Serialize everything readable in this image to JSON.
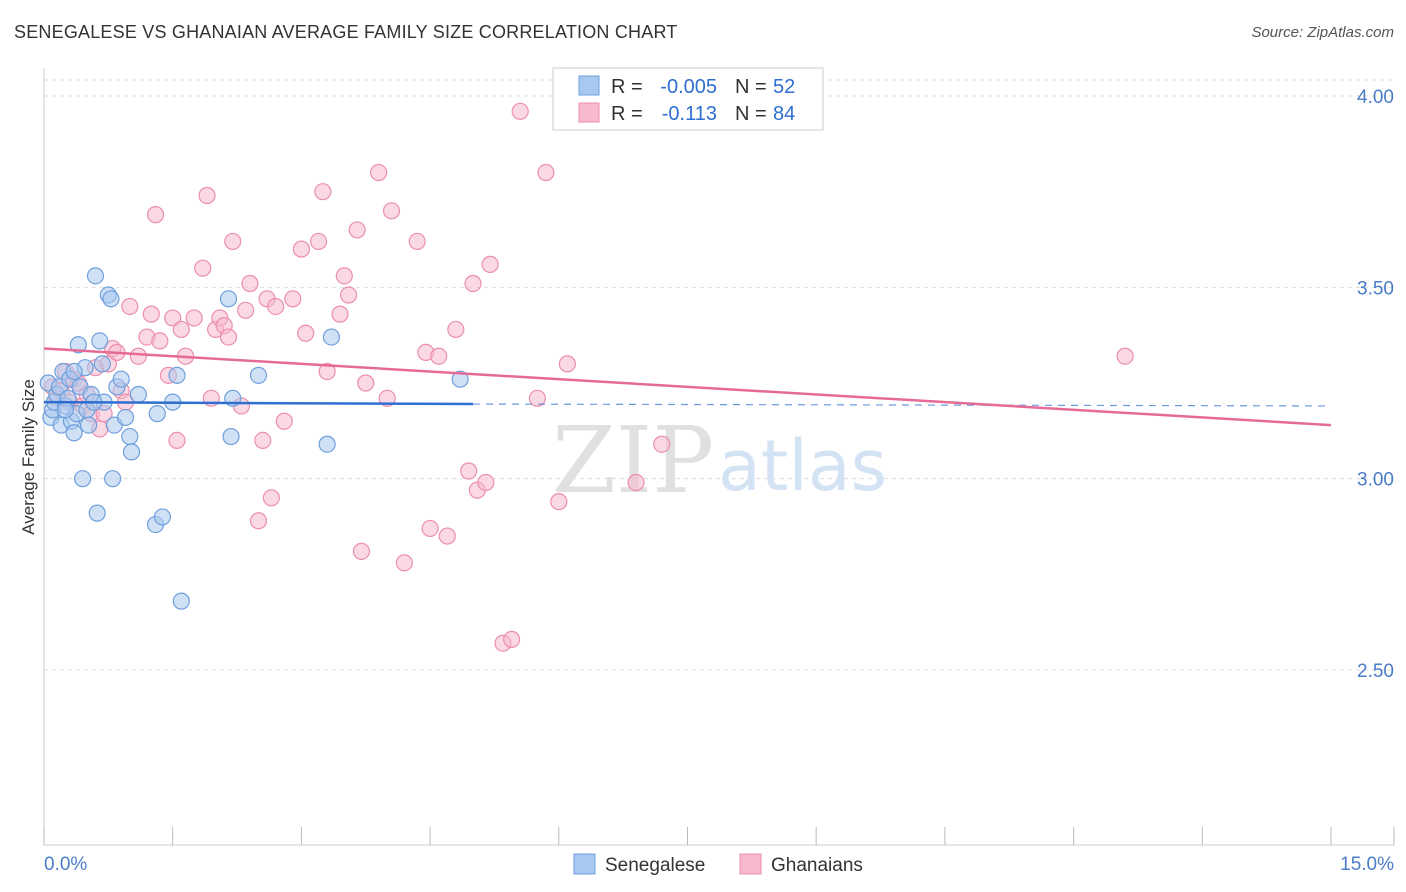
{
  "title": "SENEGALESE VS GHANAIAN AVERAGE FAMILY SIZE CORRELATION CHART",
  "source": "Source: ZipAtlas.com",
  "watermark": {
    "zip": "ZIP",
    "atlas": "atlas"
  },
  "colors": {
    "blue_fill": "#a9c8ef",
    "blue_stroke": "#6f9fdc",
    "blue_line": "#2e6fd0",
    "pink_fill": "#f6b9cd",
    "pink_stroke": "#ec8eac",
    "pink_line": "#e56b96",
    "value_text": "#2f6ed1",
    "grid": "#dddddd"
  },
  "legend": {
    "entries": [
      {
        "r_label": "R =",
        "r_value": "-0.005",
        "n_label": "N =",
        "n_value": "52"
      },
      {
        "r_label": "R =",
        "r_value": "-0.113",
        "n_label": "N =",
        "n_value": "84"
      }
    ]
  },
  "chart_data": {
    "type": "scatter",
    "title": "SENEGALESE VS GHANAIAN AVERAGE FAMILY SIZE CORRELATION CHART",
    "xlabel": "",
    "ylabel": "Average Family Size",
    "xlim": [
      0,
      15
    ],
    "ylim": [
      2.0,
      4.15
    ],
    "x_tick_labels": [
      "0.0%",
      "15.0%"
    ],
    "y_ticks": [
      2.5,
      3.0,
      3.5,
      4.0
    ],
    "y_tick_labels": [
      "2.50",
      "3.00",
      "3.50",
      "4.00"
    ],
    "series": [
      {
        "name": "Senegalese",
        "r": -0.005,
        "n": 52,
        "trend": {
          "x0": 0,
          "y0": 3.2,
          "x1": 5.0,
          "y1": 3.195,
          "dashed_to_x": 15,
          "dashed_y1": 3.19
        },
        "points": [
          [
            0.05,
            3.25
          ],
          [
            0.08,
            3.16
          ],
          [
            0.1,
            3.18
          ],
          [
            0.12,
            3.2
          ],
          [
            0.15,
            3.22
          ],
          [
            0.18,
            3.24
          ],
          [
            0.2,
            3.14
          ],
          [
            0.22,
            3.28
          ],
          [
            0.25,
            3.19
          ],
          [
            0.28,
            3.21
          ],
          [
            0.3,
            3.26
          ],
          [
            0.32,
            3.15
          ],
          [
            0.35,
            3.12
          ],
          [
            0.38,
            3.17
          ],
          [
            0.4,
            3.35
          ],
          [
            0.42,
            3.24
          ],
          [
            0.45,
            3.0
          ],
          [
            0.48,
            3.29
          ],
          [
            0.5,
            3.18
          ],
          [
            0.52,
            3.14
          ],
          [
            0.55,
            3.22
          ],
          [
            0.6,
            3.53
          ],
          [
            0.62,
            2.91
          ],
          [
            0.65,
            3.36
          ],
          [
            0.68,
            3.3
          ],
          [
            0.75,
            3.48
          ],
          [
            0.78,
            3.47
          ],
          [
            0.8,
            3.0
          ],
          [
            0.82,
            3.14
          ],
          [
            0.85,
            3.24
          ],
          [
            0.95,
            3.16
          ],
          [
            1.0,
            3.11
          ],
          [
            1.02,
            3.07
          ],
          [
            1.1,
            3.22
          ],
          [
            1.3,
            2.88
          ],
          [
            1.32,
            3.17
          ],
          [
            1.38,
            2.9
          ],
          [
            1.5,
            3.2
          ],
          [
            1.55,
            3.27
          ],
          [
            1.6,
            2.68
          ],
          [
            2.15,
            3.47
          ],
          [
            2.18,
            3.11
          ],
          [
            2.2,
            3.21
          ],
          [
            2.5,
            3.27
          ],
          [
            3.3,
            3.09
          ],
          [
            3.35,
            3.37
          ],
          [
            4.85,
            3.26
          ],
          [
            0.9,
            3.26
          ],
          [
            0.7,
            3.2
          ],
          [
            0.35,
            3.28
          ],
          [
            0.58,
            3.2
          ],
          [
            0.25,
            3.18
          ]
        ]
      },
      {
        "name": "Ghanaians",
        "r": -0.113,
        "n": 84,
        "trend": {
          "x0": 0,
          "y0": 3.34,
          "x1": 15,
          "y1": 3.14
        },
        "points": [
          [
            0.1,
            3.24
          ],
          [
            0.15,
            3.21
          ],
          [
            0.2,
            3.23
          ],
          [
            0.25,
            3.28
          ],
          [
            0.3,
            3.2
          ],
          [
            0.35,
            3.26
          ],
          [
            0.4,
            3.25
          ],
          [
            0.45,
            3.19
          ],
          [
            0.5,
            3.22
          ],
          [
            0.55,
            3.17
          ],
          [
            0.6,
            3.29
          ],
          [
            0.65,
            3.13
          ],
          [
            0.7,
            3.17
          ],
          [
            0.75,
            3.3
          ],
          [
            0.8,
            3.34
          ],
          [
            0.85,
            3.33
          ],
          [
            0.9,
            3.23
          ],
          [
            0.95,
            3.2
          ],
          [
            1.0,
            3.45
          ],
          [
            1.1,
            3.32
          ],
          [
            1.2,
            3.37
          ],
          [
            1.25,
            3.43
          ],
          [
            1.3,
            3.69
          ],
          [
            1.35,
            3.36
          ],
          [
            1.45,
            3.27
          ],
          [
            1.5,
            3.42
          ],
          [
            1.55,
            3.1
          ],
          [
            1.6,
            3.39
          ],
          [
            1.65,
            3.32
          ],
          [
            1.75,
            3.42
          ],
          [
            1.85,
            3.55
          ],
          [
            1.9,
            3.74
          ],
          [
            1.95,
            3.21
          ],
          [
            2.0,
            3.39
          ],
          [
            2.05,
            3.42
          ],
          [
            2.1,
            3.4
          ],
          [
            2.15,
            3.37
          ],
          [
            2.2,
            3.62
          ],
          [
            2.3,
            3.19
          ],
          [
            2.35,
            3.44
          ],
          [
            2.4,
            3.51
          ],
          [
            2.5,
            2.89
          ],
          [
            2.55,
            3.1
          ],
          [
            2.6,
            3.47
          ],
          [
            2.65,
            2.95
          ],
          [
            2.7,
            3.45
          ],
          [
            2.8,
            3.15
          ],
          [
            2.9,
            3.47
          ],
          [
            3.0,
            3.6
          ],
          [
            3.05,
            3.38
          ],
          [
            3.2,
            3.62
          ],
          [
            3.25,
            3.75
          ],
          [
            3.3,
            3.28
          ],
          [
            3.45,
            3.43
          ],
          [
            3.5,
            3.53
          ],
          [
            3.55,
            3.48
          ],
          [
            3.65,
            3.65
          ],
          [
            3.7,
            2.81
          ],
          [
            3.75,
            3.25
          ],
          [
            3.9,
            3.8
          ],
          [
            4.0,
            3.21
          ],
          [
            4.05,
            3.7
          ],
          [
            4.2,
            2.78
          ],
          [
            4.35,
            3.62
          ],
          [
            4.45,
            3.33
          ],
          [
            4.5,
            2.87
          ],
          [
            4.6,
            3.32
          ],
          [
            4.7,
            2.85
          ],
          [
            4.8,
            3.39
          ],
          [
            4.95,
            3.02
          ],
          [
            5.0,
            3.51
          ],
          [
            5.05,
            2.97
          ],
          [
            5.15,
            2.99
          ],
          [
            5.2,
            3.56
          ],
          [
            5.35,
            2.57
          ],
          [
            5.45,
            2.58
          ],
          [
            5.55,
            3.96
          ],
          [
            5.75,
            3.21
          ],
          [
            5.85,
            3.8
          ],
          [
            6.0,
            2.94
          ],
          [
            6.1,
            3.3
          ],
          [
            6.9,
            2.99
          ],
          [
            7.2,
            3.09
          ],
          [
            12.6,
            3.32
          ]
        ]
      }
    ],
    "legend_entries": [
      "Senegalese",
      "Ghanaians"
    ]
  }
}
